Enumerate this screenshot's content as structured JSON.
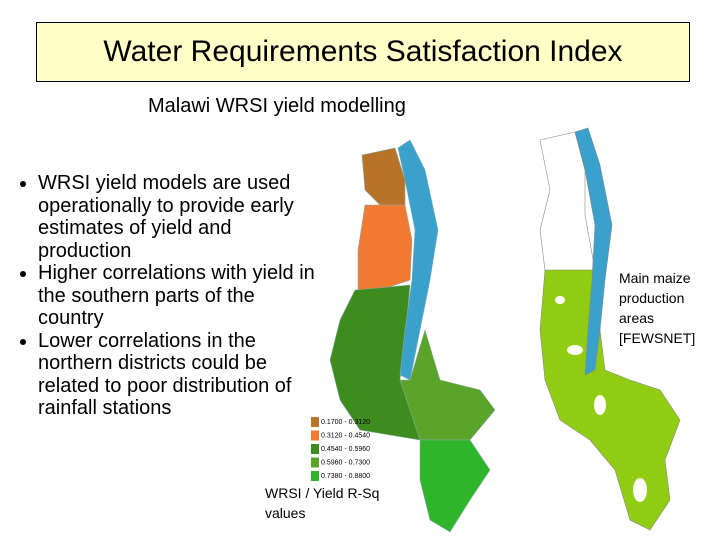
{
  "title": "Water Requirements Satisfaction Index",
  "subtitle": "Malawi WRSI yield modelling",
  "bullets": [
    "WRSI yield models are used operationally to provide early estimates of yield and production",
    "Higher correlations with yield in the southern parts of the country",
    "Lower correlations in the northern districts could be related to poor distribution of rainfall stations"
  ],
  "legend": {
    "items": [
      {
        "label": "0.1700 - 0.3120",
        "color": "#b87328"
      },
      {
        "label": "0.3120 - 0.4540",
        "color": "#f27a30"
      },
      {
        "label": "0.4540 - 0.5960",
        "color": "#3e8c1e"
      },
      {
        "label": "0.5960 - 0.7300",
        "color": "#5aa42a"
      },
      {
        "label": "0.7380 - 0.8800",
        "color": "#2fb52a"
      }
    ],
    "caption": "WRSI / Yield R-Sq values"
  },
  "map_note": "Main maize production areas [FEWSNET]"
}
